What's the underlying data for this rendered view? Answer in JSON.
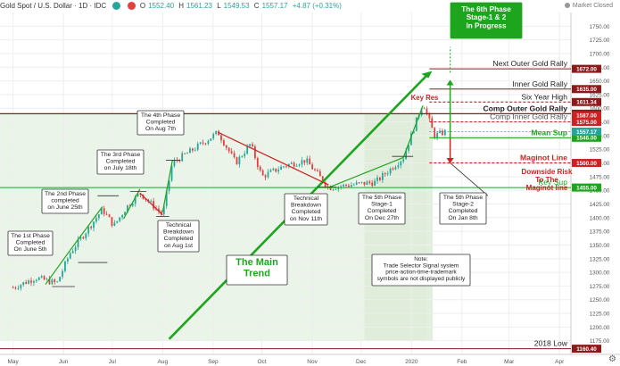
{
  "header": {
    "symbol": "Gold Spot / U.S. Dollar · 1D · IDC",
    "open_label": "O",
    "open": "1552.40",
    "high_label": "H",
    "high": "1561.23",
    "low_label": "L",
    "low": "1549.53",
    "close_label": "C",
    "close": "1557.17",
    "change": "+4.87 (+0.31%)",
    "market_status": "Market Closed"
  },
  "colors": {
    "up": "#26a69a",
    "down": "#e04040",
    "accent_green": "#1ea51e",
    "accent_red": "#cc2222",
    "axis": "#999999"
  },
  "chart_data": {
    "type": "candlestick",
    "ylim": [
      1150,
      1775
    ],
    "price_ticks": [
      1750,
      1725,
      1700,
      1675,
      1650,
      1625,
      1600,
      1575,
      1550,
      1525,
      1500,
      1475,
      1450,
      1425,
      1400,
      1375,
      1350,
      1325,
      1300,
      1275,
      1250,
      1225,
      1200,
      1175
    ],
    "month_labels": [
      {
        "label": "May",
        "date": "2019-05-01"
      },
      {
        "label": "Jun",
        "date": "2019-06-01"
      },
      {
        "label": "Jul",
        "date": "2019-07-01"
      },
      {
        "label": "Aug",
        "date": "2019-08-01"
      },
      {
        "label": "Sep",
        "date": "2019-09-01"
      },
      {
        "label": "Oct",
        "date": "2019-10-01"
      },
      {
        "label": "Nov",
        "date": "2019-11-01"
      },
      {
        "label": "Dec",
        "date": "2019-12-01"
      },
      {
        "label": "2020",
        "date": "2020-01-01"
      },
      {
        "label": "Feb",
        "date": "2020-02-01"
      },
      {
        "label": "Mar",
        "date": "2020-03-01"
      },
      {
        "label": "Apr",
        "date": "2020-04-01"
      }
    ],
    "price_path": [
      {
        "date": "2019-05-01",
        "price": 1272
      },
      {
        "date": "2019-05-15",
        "price": 1290
      },
      {
        "date": "2019-05-28",
        "price": 1280
      },
      {
        "date": "2019-06-05",
        "price": 1335
      },
      {
        "date": "2019-06-20",
        "price": 1395
      },
      {
        "date": "2019-06-25",
        "price": 1415
      },
      {
        "date": "2019-07-02",
        "price": 1385
      },
      {
        "date": "2019-07-10",
        "price": 1420
      },
      {
        "date": "2019-07-18",
        "price": 1445
      },
      {
        "date": "2019-08-01",
        "price": 1405
      },
      {
        "date": "2019-08-07",
        "price": 1500
      },
      {
        "date": "2019-08-25",
        "price": 1535
      },
      {
        "date": "2019-09-04",
        "price": 1556
      },
      {
        "date": "2019-09-15",
        "price": 1500
      },
      {
        "date": "2019-09-24",
        "price": 1535
      },
      {
        "date": "2019-10-01",
        "price": 1475
      },
      {
        "date": "2019-10-15",
        "price": 1495
      },
      {
        "date": "2019-10-28",
        "price": 1505
      },
      {
        "date": "2019-11-11",
        "price": 1455
      },
      {
        "date": "2019-11-25",
        "price": 1460
      },
      {
        "date": "2019-12-10",
        "price": 1465
      },
      {
        "date": "2019-12-27",
        "price": 1510
      },
      {
        "date": "2020-01-08",
        "price": 1611
      },
      {
        "date": "2020-01-15",
        "price": 1550
      },
      {
        "date": "2020-01-22",
        "price": 1557
      }
    ],
    "x_start": "2019-04-23",
    "x_end": "2020-04-08",
    "levels": [
      {
        "label": "Next Outer Gold Rally",
        "price": 1672,
        "tag": "1672.00",
        "color": "#8b1a1a",
        "text_color": "#222222",
        "bold": false
      },
      {
        "label": "Inner Gold Rally",
        "price": 1635,
        "tag": "1635.00",
        "color": "#8b1a1a",
        "text_color": "#222222",
        "bold": false
      },
      {
        "label": "Six Year High",
        "price": 1611.34,
        "tag": "1611.34",
        "color": "#8b1a1a",
        "text_color": "#222222",
        "bold": false
      },
      {
        "label": "Comp Outer Gold Rally",
        "price": 1590,
        "tag": "1590.00",
        "color": "#8b1a1a",
        "text_color": "#222222",
        "bold": true
      },
      {
        "label": "Comp Inner Gold Rally",
        "price": 1575,
        "tag": "1575.00",
        "color": "#cc2222",
        "text_color": "#555555",
        "bold": false
      },
      {
        "label": "Mean Sup",
        "price": 1546,
        "tag": "1546.00",
        "color": "#1ea51e",
        "text_color": "#1ea51e",
        "bold": true
      },
      {
        "label": "Maginot Line",
        "price": 1500,
        "tag": "1500.00",
        "color": "#cc2222",
        "text_color": "#cc2222",
        "bold": true
      },
      {
        "label": "Key Sup",
        "price": 1455,
        "tag": "1455.00",
        "color": "#1ea51e",
        "text_color": "#1ea51e",
        "bold": false
      },
      {
        "label": "2018 Low",
        "price": 1160.4,
        "tag": "1160.40",
        "color": "#8b1a1a",
        "text_color": "#222222",
        "bold": false
      }
    ],
    "extra_tags": [
      {
        "price": 1587,
        "tag": "1587.00",
        "color": "#cc2222"
      },
      {
        "price": 1557.17,
        "tag": "1557.17",
        "color": "#26a69a"
      },
      {
        "price": 1750,
        "tag": "1750.00",
        "color": "plain"
      },
      {
        "price": 1725,
        "tag": "1725.00",
        "color": "plain"
      },
      {
        "price": 1700,
        "tag": "1700.00",
        "color": "plain"
      },
      {
        "price": 1650,
        "tag": "1650.00",
        "color": "plain"
      },
      {
        "price": 1625,
        "tag": "1625.00",
        "color": "plain"
      }
    ],
    "annotations": {
      "phase1": "The 1st Phase\nCompleted\nOn June 5th",
      "phase2": "The 2nd Phase\ncompleted\non June 25th",
      "phase3": "The 3rd Phase\nCompleted\non July 18th",
      "breakdown_aug": "Technical\nBreakdown\nCompleted\non Aug 1st",
      "phase4": "The 4th Phase\nCompleted\nOn Aug 7th",
      "breakdown_nov": "Technical\nBreakdown\nCompleted\non Nov 11th",
      "phase5_s1": "The 5th Phase\nStage-1\nCompleted\nOn Dec 27th",
      "phase5_s2": "The 5th Phase\nStage-2\nCompleted\nOn Jan 8th",
      "phase6": "The 6th Phase\nStage-1 & 2\nIn Progress",
      "main_trend": "The Main\nTrend",
      "note": "Note:\nTrade Selector Signal system\nprice-action-time-trademark\nsymbols are not displayed publicly",
      "key_res": "Key Res",
      "downside_risk": "Downside Risk\nTo The\nMaginot line"
    }
  }
}
